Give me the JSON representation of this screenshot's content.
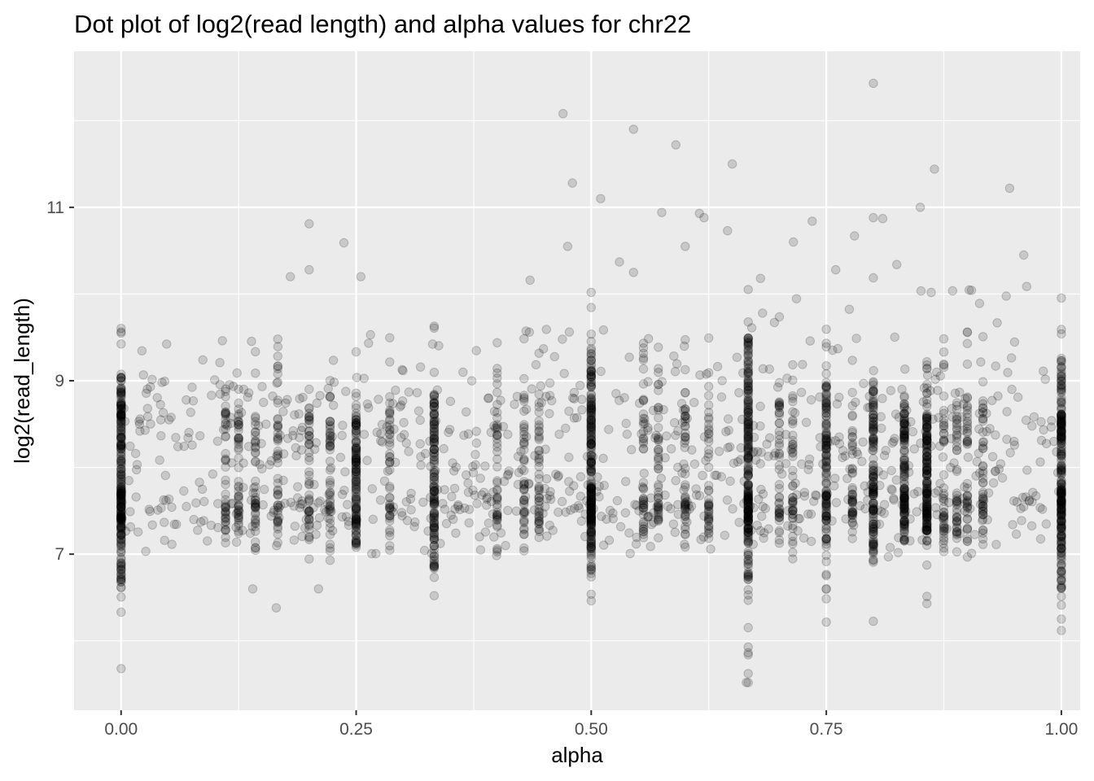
{
  "chart_data": {
    "type": "scatter",
    "title": "Dot plot of log2(read length) and alpha values for chr22",
    "xlabel": "alpha",
    "ylabel": "log2(read_length)",
    "x_ticks": [
      0,
      0.25,
      0.5,
      0.75,
      1
    ],
    "x_tick_labels": [
      "0.00",
      "0.25",
      "0.50",
      "0.75",
      "1.00"
    ],
    "y_ticks": [
      7,
      9,
      11
    ],
    "y_tick_labels": [
      "7",
      "9",
      "11"
    ],
    "xlim": [
      -0.05,
      1.02
    ],
    "ylim": [
      5.2,
      12.8
    ],
    "grid": true,
    "legend": "none",
    "colors": {
      "panel_background": "#ebebeb",
      "grid": "#ffffff",
      "point": "#000000",
      "point_opacity": 0.15
    },
    "dense_columns": [
      {
        "x": 0.0,
        "y_range": [
          5.7,
          9.7
        ],
        "core": [
          6.6,
          9.1
        ]
      },
      {
        "x": 0.25,
        "y_range": [
          6.5,
          10.2
        ],
        "core": [
          7.1,
          8.6
        ]
      },
      {
        "x": 0.333,
        "y_range": [
          6.4,
          9.8
        ],
        "core": [
          6.8,
          8.9
        ]
      },
      {
        "x": 0.5,
        "y_range": [
          6.05,
          10.15
        ],
        "core": [
          6.8,
          9.4
        ]
      },
      {
        "x": 0.667,
        "y_range": [
          5.5,
          10.1
        ],
        "core": [
          6.7,
          9.5
        ]
      },
      {
        "x": 0.75,
        "y_range": [
          6.2,
          9.9
        ],
        "core": [
          6.9,
          9.0
        ]
      },
      {
        "x": 0.8,
        "y_range": [
          6.2,
          10.9
        ],
        "core": [
          6.9,
          9.0
        ]
      },
      {
        "x": 0.833,
        "y_range": [
          6.8,
          9.6
        ],
        "core": [
          7.1,
          8.6
        ]
      },
      {
        "x": 0.857,
        "y_range": [
          6.3,
          9.8
        ],
        "core": [
          7.2,
          8.6
        ]
      },
      {
        "x": 1.0,
        "y_range": [
          5.8,
          10.3
        ],
        "core": [
          6.6,
          9.3
        ]
      }
    ],
    "clusters_y": [
      7.5,
      8.4
    ],
    "outliers": [
      {
        "x": 0.8,
        "y": 12.43
      },
      {
        "x": 0.47,
        "y": 12.08
      },
      {
        "x": 0.545,
        "y": 11.9
      },
      {
        "x": 0.59,
        "y": 11.72
      },
      {
        "x": 0.65,
        "y": 11.5
      },
      {
        "x": 0.865,
        "y": 11.44
      },
      {
        "x": 0.48,
        "y": 11.28
      },
      {
        "x": 0.945,
        "y": 11.22
      },
      {
        "x": 0.51,
        "y": 11.1
      },
      {
        "x": 0.85,
        "y": 11.0
      },
      {
        "x": 0.575,
        "y": 10.94
      },
      {
        "x": 0.615,
        "y": 10.93
      },
      {
        "x": 0.8,
        "y": 10.88
      },
      {
        "x": 0.81,
        "y": 10.87
      },
      {
        "x": 0.62,
        "y": 10.88
      },
      {
        "x": 0.735,
        "y": 10.84
      },
      {
        "x": 0.2,
        "y": 10.81
      },
      {
        "x": 0.645,
        "y": 10.73
      },
      {
        "x": 0.78,
        "y": 10.67
      },
      {
        "x": 0.715,
        "y": 10.6
      },
      {
        "x": 0.237,
        "y": 10.59
      },
      {
        "x": 0.475,
        "y": 10.55
      },
      {
        "x": 0.6,
        "y": 10.55
      },
      {
        "x": 0.96,
        "y": 10.45
      },
      {
        "x": 0.53,
        "y": 10.37
      },
      {
        "x": 0.825,
        "y": 10.34
      },
      {
        "x": 0.2,
        "y": 10.28
      },
      {
        "x": 0.545,
        "y": 10.25
      },
      {
        "x": 0.76,
        "y": 10.28
      },
      {
        "x": 0.18,
        "y": 10.2
      },
      {
        "x": 0.255,
        "y": 10.2
      },
      {
        "x": 0.68,
        "y": 10.18
      },
      {
        "x": 0.435,
        "y": 10.16
      },
      {
        "x": 0.665,
        "y": 5.52
      },
      {
        "x": 0.0,
        "y": 5.68
      },
      {
        "x": 0.165,
        "y": 6.38
      },
      {
        "x": 0.14,
        "y": 6.6
      },
      {
        "x": 0.21,
        "y": 6.6
      }
    ],
    "n_points_approx": 9000
  }
}
